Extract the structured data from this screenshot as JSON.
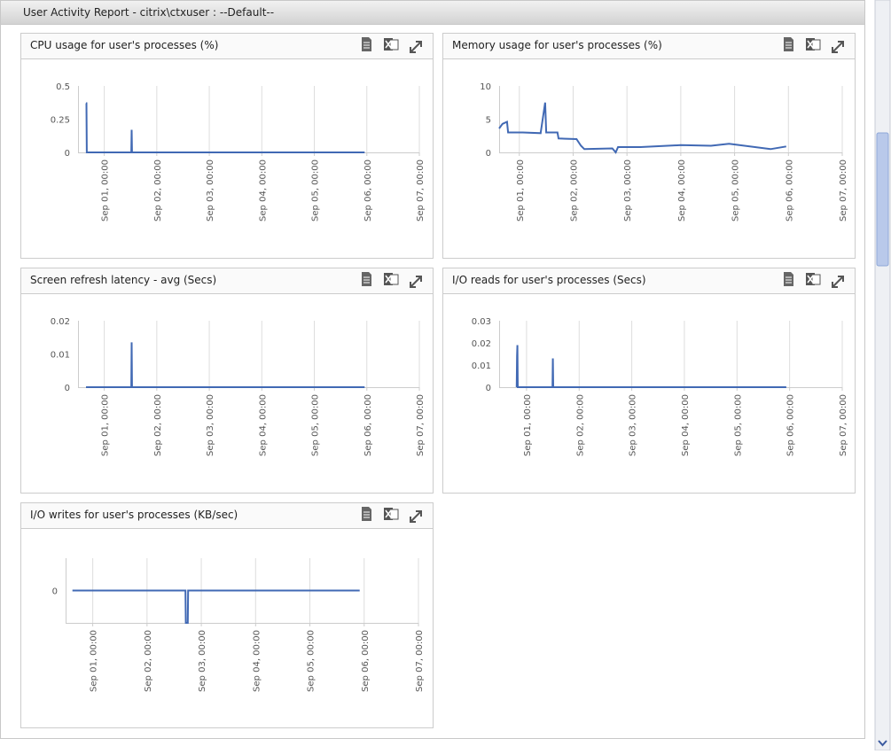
{
  "header": {
    "title": "User Activity Report - citrix\\ctxuser : --Default--"
  },
  "chart_data": [
    {
      "type": "line",
      "title": "CPU usage for user's processes (%)",
      "color": "#4169b4",
      "x": [
        "Aug 31, 15:40",
        "Aug 31, 15:50",
        "Aug 31, 16:00",
        "Sep 01, 12:20",
        "Sep 01, 12:30",
        "Sep 01, 12:40",
        "Sep 05, 23:00"
      ],
      "values": [
        0.37,
        0.37,
        0,
        0,
        0.17,
        0,
        0
      ],
      "xlim": [
        "Aug 31, 12:00",
        "Sep 07, 00:00"
      ],
      "xticks": [
        "Sep 01, 00:00",
        "Sep 02, 00:00",
        "Sep 03, 00:00",
        "Sep 04, 00:00",
        "Sep 05, 00:00",
        "Sep 06, 00:00",
        "Sep 07, 00:00"
      ],
      "ylim": [
        0,
        0.5
      ],
      "yticks": [
        0,
        0.25,
        0.5
      ],
      "grid": true
    },
    {
      "type": "line",
      "title": "Memory usage for user's processes (%)",
      "color": "#4169b4",
      "x": [
        "Aug 31, 15:00",
        "Aug 31, 16:30",
        "Aug 31, 18:30",
        "Aug 31, 19:00",
        "Sep 01, 01:30",
        "Sep 01, 09:30",
        "Sep 01, 11:30",
        "Sep 01, 12:00",
        "Sep 01, 17:00",
        "Sep 01, 17:30",
        "Sep 02, 01:30",
        "Sep 02, 03:30",
        "Sep 02, 05:00",
        "Sep 02, 17:30",
        "Sep 02, 19:00",
        "Sep 02, 20:00",
        "Sep 03, 06:00",
        "Sep 04, 00:00",
        "Sep 04, 13:30",
        "Sep 04, 21:30",
        "Sep 05, 16:00",
        "Sep 05, 23:00"
      ],
      "values": [
        3.6,
        4.3,
        4.6,
        3.0,
        3.0,
        2.9,
        7.5,
        3.0,
        3.0,
        2.1,
        2.0,
        1.0,
        0.5,
        0.6,
        0,
        0.8,
        0.8,
        1.1,
        1.0,
        1.3,
        0.5,
        0.9
      ],
      "xlim": [
        "Aug 31, 15:00",
        "Sep 07, 00:00"
      ],
      "xticks": [
        "Sep 01, 00:00",
        "Sep 02, 00:00",
        "Sep 03, 00:00",
        "Sep 04, 00:00",
        "Sep 05, 00:00",
        "Sep 06, 00:00",
        "Sep 07, 00:00"
      ],
      "ylim": [
        0,
        10
      ],
      "yticks": [
        0,
        5,
        10
      ],
      "grid": true
    },
    {
      "type": "line",
      "title": "Screen refresh latency - avg (Secs)",
      "color": "#4169b4",
      "x": [
        "Aug 31, 15:40",
        "Sep 01, 12:20",
        "Sep 01, 12:30",
        "Sep 01, 12:40",
        "Sep 05, 23:00"
      ],
      "values": [
        0,
        0,
        0.0135,
        0,
        0
      ],
      "xlim": [
        "Aug 31, 12:00",
        "Sep 07, 00:00"
      ],
      "xticks": [
        "Sep 01, 00:00",
        "Sep 02, 00:00",
        "Sep 03, 00:00",
        "Sep 04, 00:00",
        "Sep 05, 00:00",
        "Sep 06, 00:00",
        "Sep 07, 00:00"
      ],
      "ylim": [
        0,
        0.02
      ],
      "yticks": [
        0,
        0.01,
        0.02
      ],
      "grid": true
    },
    {
      "type": "line",
      "title": "I/O reads for user's processes (Secs)",
      "color": "#4169b4",
      "x": [
        "Aug 31, 19:30",
        "Aug 31, 19:40",
        "Aug 31, 19:50",
        "Aug 31, 20:00",
        "Aug 31, 20:10",
        "Sep 01, 11:50",
        "Sep 01, 12:00",
        "Sep 01, 12:10",
        "Sep 05, 22:30"
      ],
      "values": [
        0,
        0.014,
        0.019,
        0,
        0,
        0,
        0.013,
        0,
        0
      ],
      "xlim": [
        "Aug 31, 11:30",
        "Sep 07, 00:00"
      ],
      "xticks": [
        "Sep 01, 00:00",
        "Sep 02, 00:00",
        "Sep 03, 00:00",
        "Sep 04, 00:00",
        "Sep 05, 00:00",
        "Sep 06, 00:00",
        "Sep 07, 00:00"
      ],
      "ylim": [
        0,
        0.03
      ],
      "yticks": [
        0,
        0.01,
        0.02,
        0.03
      ],
      "grid": true
    },
    {
      "type": "line",
      "title": "I/O writes for user's processes (KB/sec)",
      "color": "#4169b4",
      "x": [
        "Aug 31, 15:00",
        "Sep 02, 17:00",
        "Sep 02, 17:10",
        "Sep 02, 18:00",
        "Sep 02, 18:10",
        "Sep 05, 22:00"
      ],
      "values": [
        0,
        0,
        -1,
        -1,
        0,
        0
      ],
      "xlim": [
        "Aug 31, 12:00",
        "Sep 07, 00:00"
      ],
      "xticks": [
        "Sep 01, 00:00",
        "Sep 02, 00:00",
        "Sep 03, 00:00",
        "Sep 04, 00:00",
        "Sep 05, 00:00",
        "Sep 06, 00:00",
        "Sep 07, 00:00"
      ],
      "ylim": [
        -1,
        1
      ],
      "yticks": [
        0
      ],
      "grid": true
    }
  ]
}
